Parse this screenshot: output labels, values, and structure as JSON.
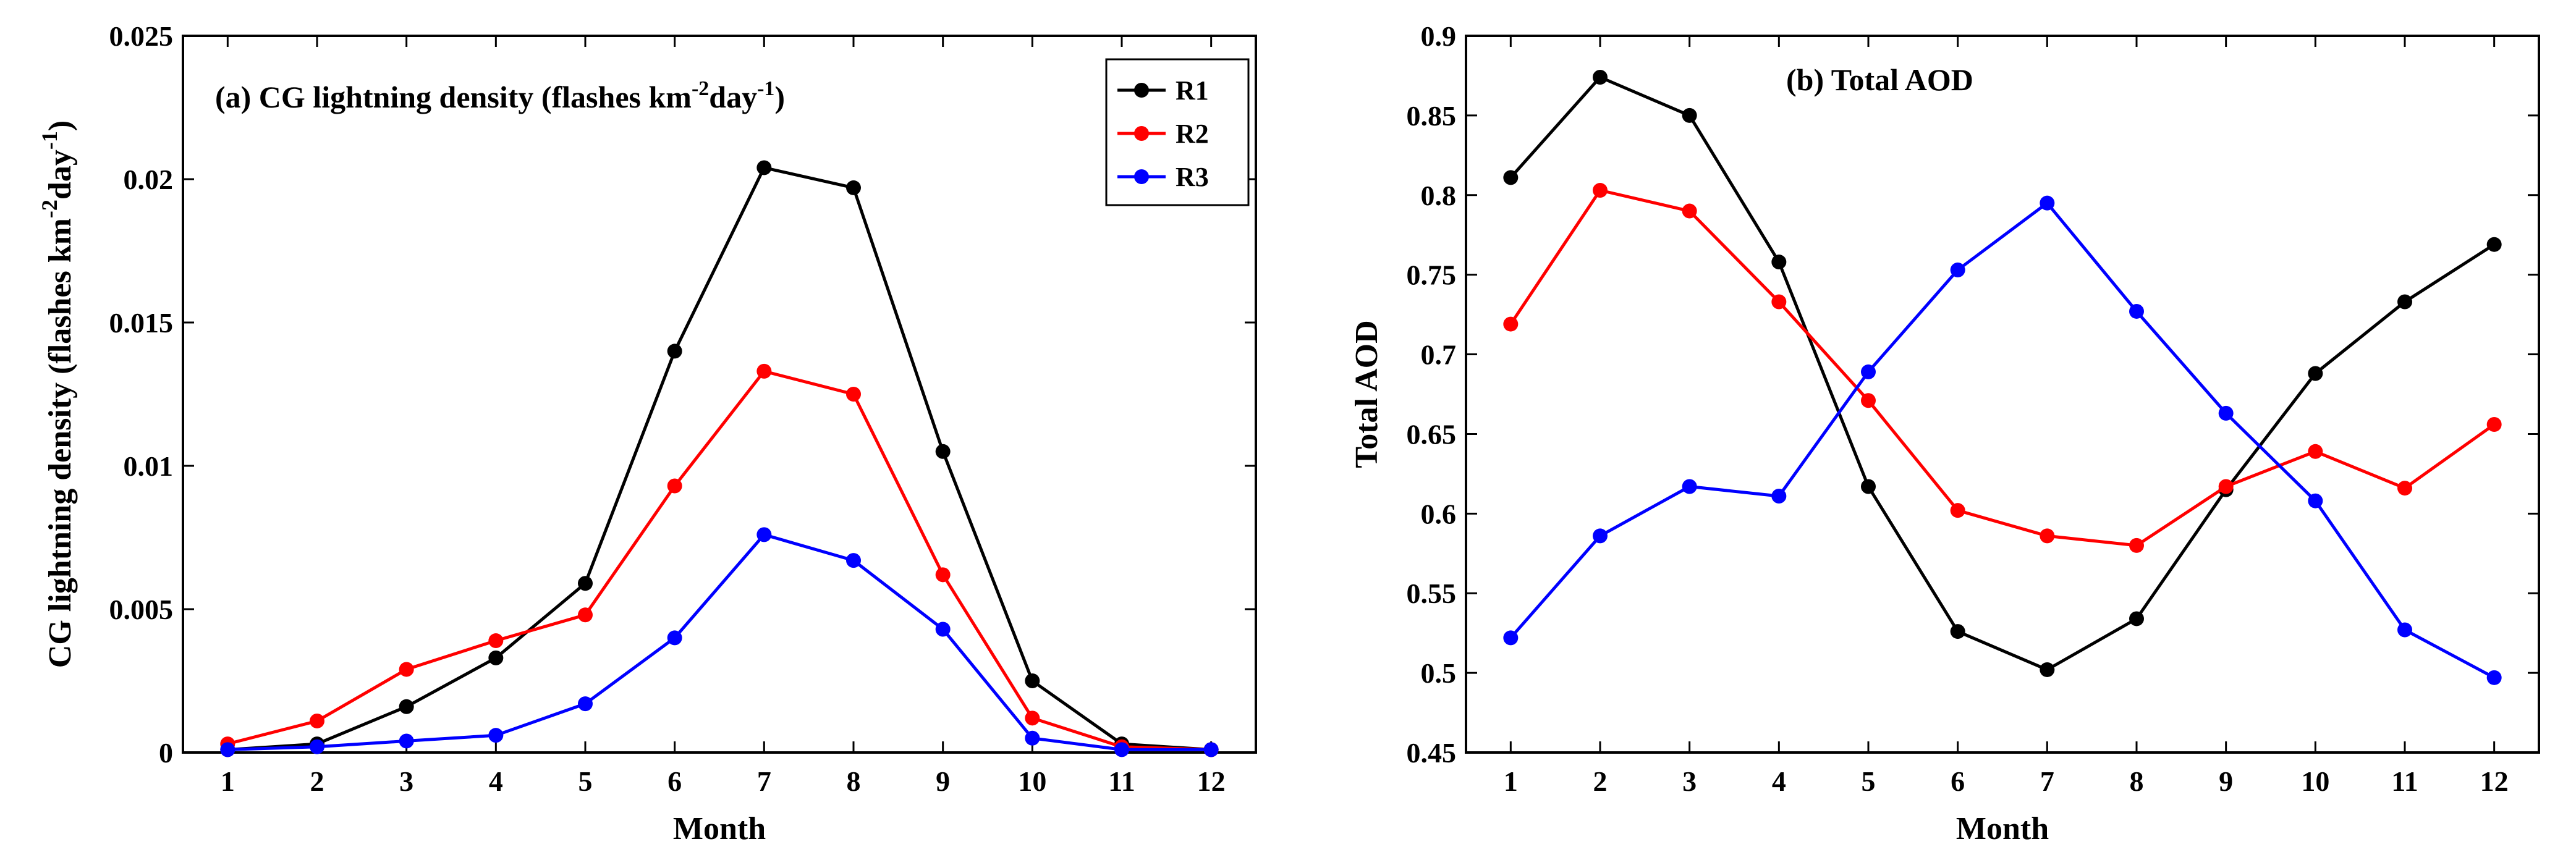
{
  "chart_data": [
    {
      "type": "line",
      "title": "(a) CG lightning density (flashes km",
      "title_sup1": "-2",
      "title_mid": "day",
      "title_sup2": "-1",
      "title_end": ")",
      "xlabel": "Month",
      "ylabel": "CG lightning density (flashes km",
      "ylabel_sup1": "-2",
      "ylabel_mid": "day",
      "ylabel_sup2": "-1",
      "ylabel_end": ")",
      "x": [
        1,
        2,
        3,
        4,
        5,
        6,
        7,
        8,
        9,
        10,
        11,
        12
      ],
      "xlim": [
        0.5,
        12.5
      ],
      "ylim": [
        0,
        0.025
      ],
      "xticks": [
        "1",
        "2",
        "3",
        "4",
        "5",
        "6",
        "7",
        "8",
        "9",
        "10",
        "11",
        "12"
      ],
      "yticks": [
        "0",
        "0.005",
        "0.01",
        "0.015",
        "0.02",
        "0.025"
      ],
      "ytick_values": [
        0,
        0.005,
        0.01,
        0.015,
        0.02,
        0.025
      ],
      "grid": false,
      "legend_position": "top-right",
      "series": [
        {
          "name": "R1",
          "color": "#000000",
          "values": [
            0.0001,
            0.0003,
            0.0016,
            0.0033,
            0.0059,
            0.014,
            0.0204,
            0.0197,
            0.0105,
            0.0025,
            0.0003,
            0.0001
          ]
        },
        {
          "name": "R2",
          "color": "#ff0000",
          "values": [
            0.0003,
            0.0011,
            0.0029,
            0.0039,
            0.0048,
            0.0093,
            0.0133,
            0.0125,
            0.0062,
            0.0012,
            0.0002,
            0.0001
          ]
        },
        {
          "name": "R3",
          "color": "#0000ff",
          "values": [
            0.0001,
            0.0002,
            0.0004,
            0.0006,
            0.0017,
            0.004,
            0.0076,
            0.0067,
            0.0043,
            0.0005,
            0.0001,
            0.0001
          ]
        }
      ]
    },
    {
      "type": "line",
      "title": "(b) Total AOD",
      "xlabel": "Month",
      "ylabel": "Total AOD",
      "x": [
        1,
        2,
        3,
        4,
        5,
        6,
        7,
        8,
        9,
        10,
        11,
        12
      ],
      "xlim": [
        0.5,
        12.5
      ],
      "ylim": [
        0.45,
        0.9
      ],
      "xticks": [
        "1",
        "2",
        "3",
        "4",
        "5",
        "6",
        "7",
        "8",
        "9",
        "10",
        "11",
        "12"
      ],
      "yticks": [
        "0.45",
        "0.5",
        "0.55",
        "0.6",
        "0.65",
        "0.7",
        "0.75",
        "0.8",
        "0.85",
        "0.9"
      ],
      "ytick_values": [
        0.45,
        0.5,
        0.55,
        0.6,
        0.65,
        0.7,
        0.75,
        0.8,
        0.85,
        0.9
      ],
      "grid": false,
      "series": [
        {
          "name": "R1",
          "color": "#000000",
          "values": [
            0.811,
            0.874,
            0.85,
            0.758,
            0.617,
            0.526,
            0.502,
            0.534,
            0.615,
            0.688,
            0.733,
            0.769
          ]
        },
        {
          "name": "R2",
          "color": "#ff0000",
          "values": [
            0.719,
            0.803,
            0.79,
            0.733,
            0.671,
            0.602,
            0.586,
            0.58,
            0.617,
            0.639,
            0.616,
            0.656
          ]
        },
        {
          "name": "R3",
          "color": "#0000ff",
          "values": [
            0.522,
            0.586,
            0.617,
            0.611,
            0.689,
            0.753,
            0.795,
            0.727,
            0.663,
            0.608,
            0.527,
            0.497
          ]
        }
      ]
    }
  ]
}
